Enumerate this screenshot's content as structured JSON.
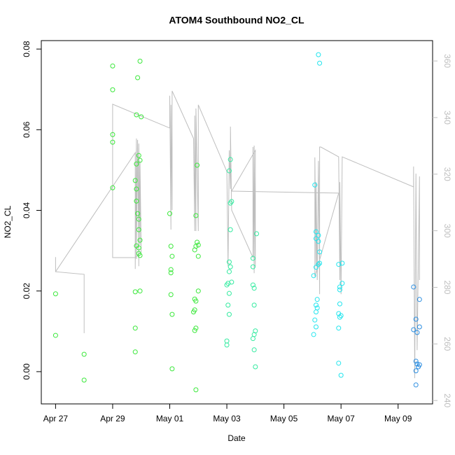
{
  "chart_data": {
    "type": "scatter",
    "title": "ATOM4 Southbound NO2_CL",
    "x_label": "Date",
    "y_label": "NO2_CL",
    "xlim": [
      "04-26T12",
      "05-10T05"
    ],
    "xticks": [
      {
        "value": "04-27",
        "label": "Apr 27"
      },
      {
        "value": "04-29",
        "label": "Apr 29"
      },
      {
        "value": "05-01",
        "label": "May 01"
      },
      {
        "value": "05-03",
        "label": "May 03"
      },
      {
        "value": "05-05",
        "label": "May 05"
      },
      {
        "value": "05-07",
        "label": "May 07"
      },
      {
        "value": "05-09",
        "label": "May 09"
      }
    ],
    "ylim": [
      -0.008,
      0.0821
    ],
    "yticks": [
      {
        "value": 0,
        "label": "0.00"
      },
      {
        "value": 0.02,
        "label": "0.02"
      },
      {
        "value": 0.04,
        "label": "0.04"
      },
      {
        "value": 0.06,
        "label": "0.06"
      },
      {
        "value": 0.08,
        "label": "0.08"
      }
    ],
    "y2lim": [
      238.8,
      367.2
    ],
    "y2ticks": [
      240,
      260,
      280,
      300,
      320,
      340,
      360
    ],
    "y2_color": "#bebebe",
    "series": [
      {
        "type": "scatter",
        "color": "#3be83b",
        "x": [
          "04-27T00",
          "04-27T00",
          "04-28T00",
          "04-28T00",
          "04-29T00",
          "04-29T00",
          "04-29T00",
          "04-29T00",
          "04-29T00",
          "04-29T21",
          "04-29T23",
          "04-29T20",
          "04-30T00",
          "04-29T22",
          "04-29T23",
          "04-29T20",
          "04-29T19",
          "04-29T20",
          "04-29T20",
          "04-29T21",
          "04-29T22",
          "04-29T22",
          "04-29T23",
          "04-29T20",
          "04-29T22",
          "04-29T22",
          "04-29T23",
          "04-29T23",
          "04-29T19",
          "04-29T19",
          "04-29T19",
          "05-01T00",
          "05-01T01",
          "05-01T02",
          "05-01T01",
          "05-01T01",
          "05-01T01",
          "05-01T02",
          "05-01T02",
          "05-01T23",
          "05-01T22",
          "05-01T23",
          "05-02T00",
          "05-01T22",
          "05-01T21",
          "05-02T00",
          "05-02T00",
          "05-01T21",
          "05-01T22",
          "05-01T21",
          "05-01T20",
          "05-01T22",
          "05-01T21",
          "05-01T22"
        ],
        "values": [
          0.0193,
          0.009,
          0.0043,
          -0.0021,
          0.0758,
          0.0699,
          0.0588,
          0.0569,
          0.0456,
          0.0729,
          0.077,
          0.0637,
          0.0632,
          0.0536,
          0.0524,
          0.0515,
          0.0474,
          0.0453,
          0.0423,
          0.0392,
          0.0378,
          0.0352,
          0.0326,
          0.0312,
          0.0307,
          0.0293,
          0.0288,
          0.02,
          0.0198,
          0.0108,
          0.0049,
          0.0392,
          0.0311,
          0.0286,
          0.0253,
          0.0245,
          0.0191,
          0.0142,
          0.0007,
          0.0512,
          0.0387,
          0.0321,
          0.0314,
          0.0311,
          0.0302,
          0.0286,
          0.02,
          0.018,
          0.0175,
          0.0153,
          0.0148,
          0.0108,
          0.0102,
          -0.0045
        ]
      },
      {
        "type": "scatter",
        "color": "#33eba0",
        "x": [
          "05-03T03",
          "05-03T02",
          "05-03T04",
          "05-03T03",
          "05-03T03",
          "05-03T02",
          "05-03T03",
          "05-03T02",
          "05-03T04",
          "05-03T01",
          "05-03T00",
          "05-03T02",
          "05-03T01",
          "05-03T02",
          "05-03T00",
          "05-03T00",
          "05-04T01",
          "05-03T22",
          "05-03T22",
          "05-03T22",
          "05-03T23",
          "05-03T23",
          "05-04T00",
          "05-03T23",
          "05-03T22",
          "05-03T23",
          "05-04T00"
        ],
        "values": [
          0.0526,
          0.0498,
          0.0422,
          0.0418,
          0.0352,
          0.0272,
          0.026,
          0.0248,
          0.0222,
          0.0219,
          0.0215,
          0.0194,
          0.0165,
          0.0142,
          0.0076,
          0.0066,
          0.0342,
          0.0281,
          0.026,
          0.0215,
          0.0207,
          0.0165,
          0.0101,
          0.0092,
          0.0082,
          0.0054,
          0.0012
        ]
      },
      {
        "type": "scatter",
        "color": "#22e5ee",
        "x": [
          "05-06T05",
          "05-06T06",
          "05-06T02",
          "05-06T03",
          "05-06T05",
          "05-06T03",
          "05-06T05",
          "05-06T06",
          "05-06T05",
          "05-06T06",
          "05-06T03",
          "05-06T01",
          "05-06T04",
          "05-06T03",
          "05-06T04",
          "05-06T03",
          "05-06T02",
          "05-06T03",
          "05-06T01",
          "05-07T01",
          "05-06T22",
          "05-07T01",
          "05-06T23",
          "05-06T23",
          "05-06T23",
          "05-06T22",
          "05-07T00",
          "05-06T23",
          "05-06T22",
          "05-06T22",
          "05-07T00"
        ],
        "values": [
          0.0786,
          0.0765,
          0.0463,
          0.0347,
          0.0338,
          0.033,
          0.0323,
          0.0297,
          0.0266,
          0.0269,
          0.0259,
          0.0238,
          0.0179,
          0.0165,
          0.0158,
          0.0148,
          0.0128,
          0.0111,
          0.0092,
          0.0269,
          0.0266,
          0.0219,
          0.021,
          0.0203,
          0.0168,
          0.0144,
          0.0139,
          0.0135,
          0.0108,
          0.0021,
          -0.0009
        ]
      },
      {
        "type": "scatter",
        "color": "#2b8de0",
        "x": [
          "05-09T13",
          "05-09T18",
          "05-09T15",
          "05-09T18",
          "05-09T13",
          "05-09T16",
          "05-09T15",
          "05-09T16",
          "05-09T18",
          "05-09T17",
          "05-09T15",
          "05-09T15"
        ],
        "values": [
          0.021,
          0.0179,
          0.013,
          0.0111,
          0.0104,
          0.0097,
          0.0026,
          0.0019,
          0.0017,
          0.0012,
          0.0002,
          -0.0033
        ]
      },
      {
        "type": "line",
        "axis": "y2",
        "color": "#bebebe",
        "x": [
          "04-27T00",
          "04-27T00",
          "04-28T00",
          "04-28T00",
          null,
          "04-27T00",
          "04-29T19",
          "04-29T19",
          "04-29T20",
          "04-29T20",
          "04-29T21",
          "04-29T22",
          "04-29T22",
          "04-29T23",
          "04-29T23",
          "04-30T00",
          "04-29T19",
          "04-29T00",
          "04-29T00",
          "05-01T00",
          "05-01T00",
          "05-01T01",
          "05-01T01",
          "05-01T02",
          "05-01T02",
          "05-01T20",
          "05-01T21",
          "05-01T21",
          "05-01T22",
          "05-01T22",
          "05-02T00",
          "05-02T00",
          "05-03T00",
          "05-03T01",
          "05-03T02",
          "05-03T03",
          "05-03T03",
          "05-03T04",
          "05-03T22",
          "05-03T22",
          "05-03T23",
          "05-03T23",
          "05-04T00",
          "05-04T00",
          "05-03T04",
          "05-06T22",
          "05-06T02",
          "05-06T02",
          "05-06T03",
          "05-06T03",
          "05-06T04",
          "05-06T05",
          "05-06T06",
          "05-06T06",
          "05-06T07",
          "05-06T22",
          "05-06T23",
          "05-06T23",
          "05-07T00",
          "05-07T01",
          "05-09T13",
          "05-09T13",
          "05-09T14",
          "05-09T15",
          "05-09T16",
          "05-09T18",
          "05-09T18"
        ],
        "values": [
          290.7,
          285.5,
          284.6,
          263.8,
          null,
          285.5,
          327.6,
          286.5,
          332.6,
          290.0,
          332.1,
          287.5,
          330.8,
          295.0,
          324.7,
          292.5,
          290.5,
          290.5,
          344.7,
          336.3,
          347.7,
          300.4,
          344.5,
          307.3,
          349.4,
          332.6,
          299.9,
          340.7,
          299.9,
          343.2,
          299.9,
          344.5,
          320.9,
          287.5,
          328.4,
          314.8,
          336.8,
          307.3,
          290.5,
          329.6,
          285.0,
          330.1,
          287.5,
          328.4,
          314.0,
          313.3,
          283.8,
          325.9,
          287.5,
          317.2,
          282.6,
          324.7,
          277.6,
          329.6,
          329.6,
          326.1,
          282.6,
          317.2,
          277.6,
          326.1,
          315.5,
          322.7,
          247.9,
          320.2,
          257.8,
          319.2,
          282.6
        ]
      }
    ]
  }
}
